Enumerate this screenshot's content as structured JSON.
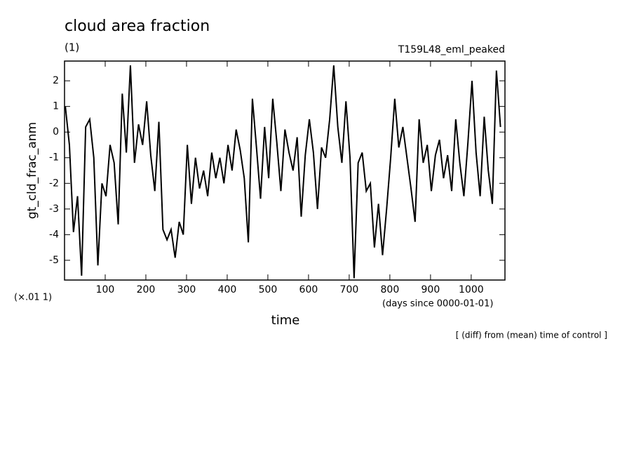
{
  "chart_data": {
    "type": "line",
    "title": "cloud area fraction",
    "subtitle": "(1)",
    "run_label": "T159L48_eml_peaked",
    "ylabel": "gt_cld_frac_anm",
    "yunit": "(×.01 1)",
    "xlabel": "time",
    "xunit": "(days since 0000-01-01)",
    "note": "[ (diff) from (mean) time of control ]",
    "color": "#000000",
    "x": [
      2,
      12,
      22,
      32,
      42,
      52,
      62,
      72,
      82,
      92,
      102,
      112,
      122,
      132,
      142,
      152,
      162,
      172,
      182,
      192,
      202,
      212,
      222,
      232,
      242,
      252,
      262,
      272,
      282,
      292,
      302,
      312,
      322,
      332,
      342,
      352,
      362,
      372,
      382,
      392,
      402,
      412,
      422,
      432,
      442,
      452,
      462,
      472,
      482,
      492,
      502,
      512,
      522,
      532,
      542,
      552,
      562,
      572,
      582,
      592,
      602,
      612,
      622,
      632,
      642,
      652,
      662,
      672,
      682,
      692,
      702,
      712,
      722,
      732,
      742,
      752,
      762,
      772,
      782,
      792,
      802,
      812,
      822,
      832,
      842,
      852,
      862,
      872,
      882,
      892,
      902,
      912,
      922,
      932,
      942,
      952,
      962,
      972,
      982,
      992,
      1002,
      1012,
      1022,
      1032,
      1042,
      1052,
      1062,
      1072
    ],
    "values": [
      1.0,
      -0.5,
      -3.9,
      -2.5,
      -5.6,
      0.2,
      0.5,
      -1.0,
      -5.2,
      -2.0,
      -2.5,
      -0.5,
      -1.2,
      -3.6,
      1.5,
      -0.8,
      2.6,
      -1.2,
      0.3,
      -0.5,
      1.2,
      -0.9,
      -2.3,
      0.4,
      -3.8,
      -4.2,
      -3.8,
      -4.9,
      -3.5,
      -4.0,
      -0.5,
      -2.8,
      -1.0,
      -2.2,
      -1.5,
      -2.5,
      -0.8,
      -1.8,
      -1.0,
      -2.0,
      -0.5,
      -1.5,
      0.1,
      -0.7,
      -1.8,
      -4.3,
      1.3,
      -0.6,
      -2.6,
      0.2,
      -1.8,
      1.3,
      -0.4,
      -2.3,
      0.1,
      -0.8,
      -1.5,
      -0.2,
      -3.3,
      -0.9,
      0.5,
      -0.8,
      -3.0,
      -0.6,
      -1.0,
      0.5,
      2.6,
      0.2,
      -1.2,
      1.2,
      -1.0,
      -5.7,
      -1.2,
      -0.8,
      -2.3,
      -2.0,
      -4.5,
      -2.8,
      -4.8,
      -3.0,
      -1.0,
      1.3,
      -0.6,
      0.2,
      -1.0,
      -2.2,
      -3.5,
      0.5,
      -1.2,
      -0.5,
      -2.3,
      -0.9,
      -0.3,
      -1.8,
      -0.9,
      -2.3,
      0.5,
      -1.2,
      -2.5,
      -0.4,
      2.0,
      -0.8,
      -2.5,
      0.6,
      -1.5,
      -2.8,
      2.4,
      0.2
    ],
    "xlim": [
      0,
      1083
    ],
    "xticks": [
      100,
      200,
      300,
      400,
      500,
      600,
      700,
      800,
      900,
      1000
    ],
    "ylim": [
      -5.77,
      2.77
    ],
    "yticks": [
      -5,
      -4,
      -3,
      -2,
      -1,
      0,
      1,
      2
    ],
    "grid": false
  }
}
